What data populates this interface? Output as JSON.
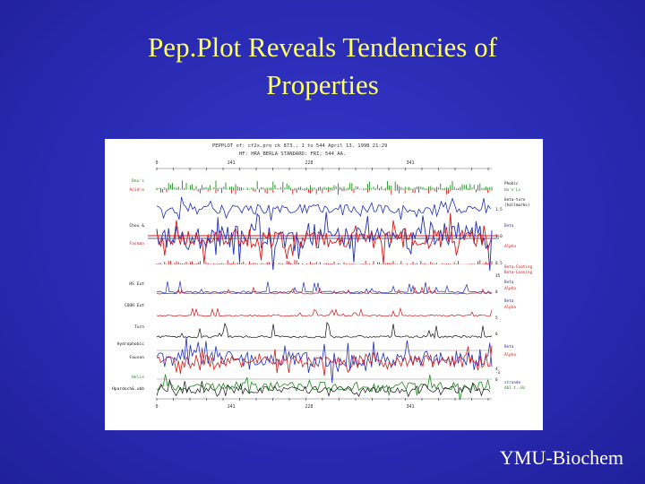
{
  "slide": {
    "title_line1": "Pep.Plot Reveals Tendencies of",
    "title_line2": "Properties",
    "footer": "YMU-Biochem"
  },
  "figure": {
    "header_line1": "PEPPLOT of: cf2x.pro ck  873.,  1 to 544  April 13, 1998 21:29",
    "header_line2": "HF: HRA_BERLA    STANDARD:  FRI;  544 AA.",
    "top_ticks": [
      "0",
      "141",
      "228",
      "341"
    ],
    "bottom_ticks": [
      "0",
      "141",
      "228",
      "341"
    ],
    "left_labels": [
      "Deu's",
      "Acid'e",
      "Chou &",
      "Fasman",
      "HS Ext",
      "COOH Ext",
      "Turn",
      "Hydrophobic",
      "Fauson",
      "Helix",
      "Hpardoch&.ubb"
    ],
    "right_labels": [
      "Phobic",
      "Hu'n'Ls",
      "beta-turn",
      "(hallmarks)",
      "1.5",
      "Beta",
      "1.0",
      "Alpha",
      "0.5",
      "Beta-Coating",
      "Beta-Loaning",
      "15",
      "Beta",
      "Alpha",
      "0",
      "Beta",
      "Alpha",
      "5",
      "0",
      "Beta",
      "Alpha",
      "4",
      "0",
      "-1",
      "strande",
      "Abl.t..Hc"
    ],
    "colors": {
      "blue": "#1f2fb8",
      "red": "#d01818",
      "green": "#1a8a1a",
      "black": "#111111",
      "purple": "#2a2a70"
    }
  }
}
